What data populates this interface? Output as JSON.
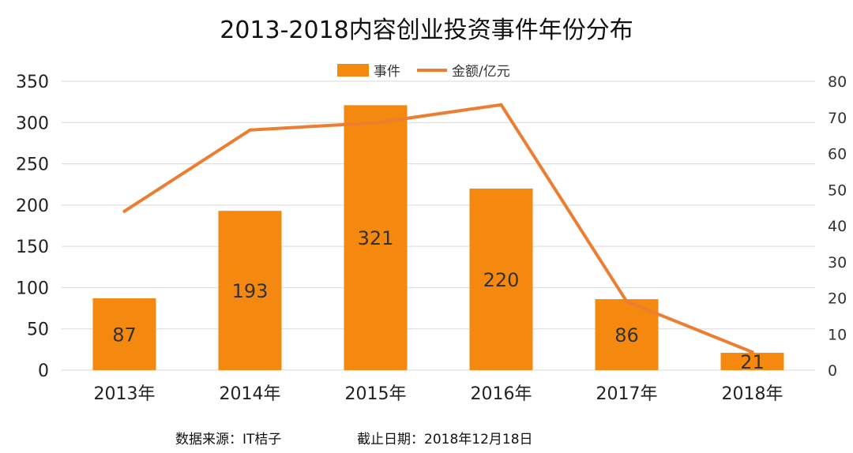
{
  "chart_data": {
    "type": "bar",
    "title": "2013-2018内容创业投资事件年份分布",
    "categories": [
      "2013年",
      "2014年",
      "2015年",
      "2016年",
      "2017年",
      "2018年"
    ],
    "series": [
      {
        "name": "事件",
        "kind": "bar",
        "axis": "left",
        "values": [
          87,
          193,
          321,
          220,
          86,
          21
        ]
      },
      {
        "name": "金额/亿元",
        "kind": "line",
        "axis": "right",
        "values": [
          44,
          66.5,
          68.5,
          73.5,
          19,
          5
        ]
      }
    ],
    "ylim": [
      0,
      350
    ],
    "yticks": [
      0,
      50,
      100,
      150,
      200,
      250,
      300,
      350
    ],
    "y2lim": [
      0,
      80
    ],
    "y2ticks": [
      0,
      10,
      20,
      30,
      40,
      50,
      60,
      70,
      80
    ],
    "legend_position": "top-center",
    "grid": true,
    "colors": {
      "bar": "#F5880F",
      "line": "#ED7D31",
      "grid": "#D9D9D9"
    }
  },
  "footer": {
    "source": "数据来源：IT桔子",
    "date": "截止日期：2018年12月18日"
  }
}
